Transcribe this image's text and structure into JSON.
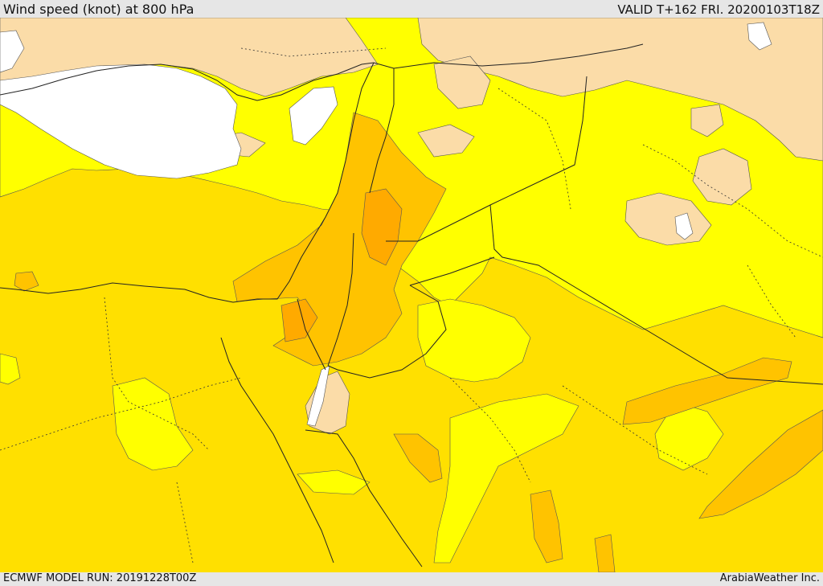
{
  "header": {
    "title": "Wind speed (knot) at 800 hPa",
    "valid": "VALID T+162 FRI. 20200103T18Z"
  },
  "footer": {
    "model_run": "ECMWF MODEL RUN: 20191228T00Z",
    "credit": "ArabiaWeather Inc."
  },
  "map": {
    "field": "wind speed 800 hPa",
    "colors": {
      "calm": "#ffffff",
      "light": "#fbdca8",
      "low": "#ffff00",
      "moderate": "#ffe000",
      "high": "#ffc300",
      "highest": "#ffaa00",
      "contour": "#555555",
      "border": "#222222"
    }
  }
}
